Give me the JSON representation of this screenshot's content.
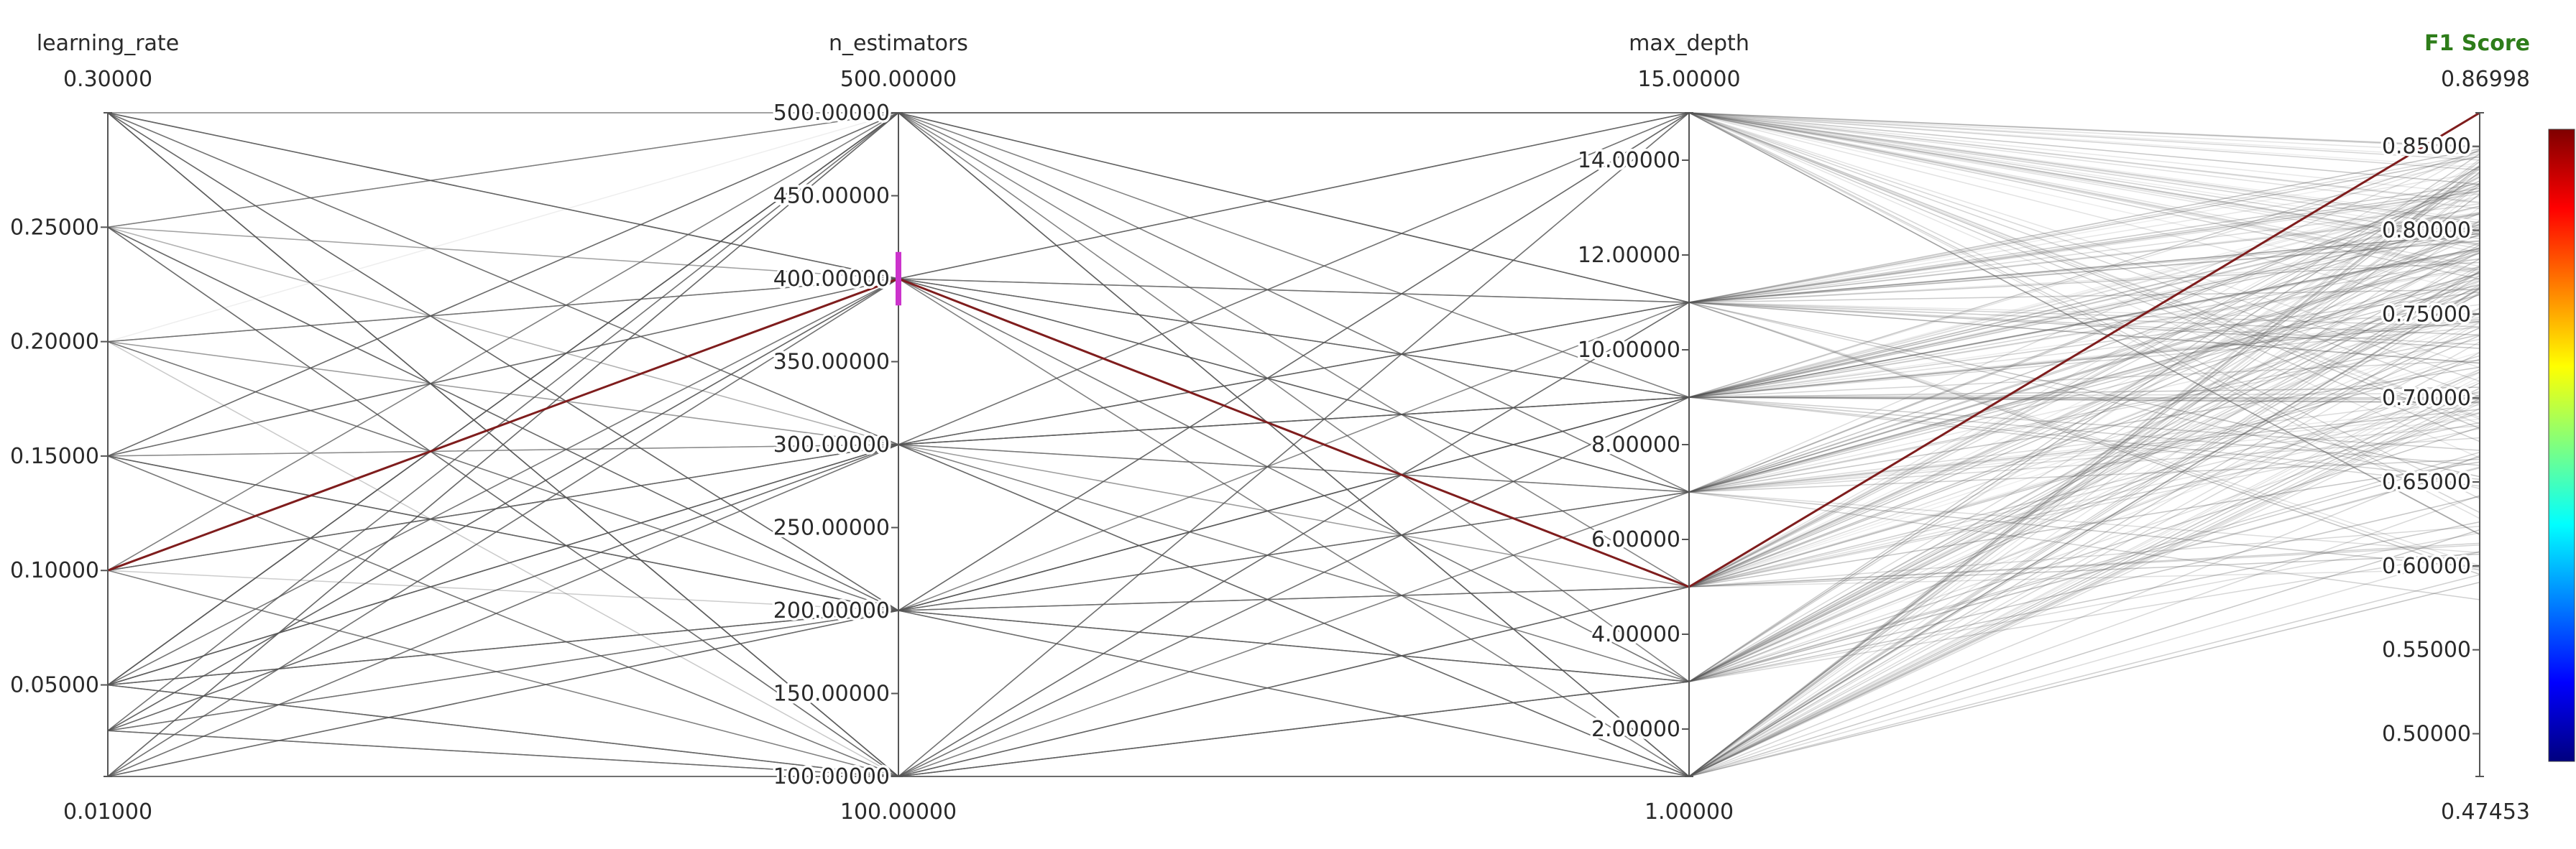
{
  "chart_data": {
    "type": "parallel_coordinates",
    "axes": [
      {
        "name": "learning_rate",
        "title": "learning_rate",
        "range": [
          0.01,
          0.3
        ],
        "range_labels": {
          "top": "0.30000",
          "bottom": "0.01000"
        },
        "ticks": [
          {
            "value": 0.25,
            "label": "0.25000"
          },
          {
            "value": 0.2,
            "label": "0.20000"
          },
          {
            "value": 0.15,
            "label": "0.15000"
          },
          {
            "value": 0.1,
            "label": "0.10000"
          },
          {
            "value": 0.05,
            "label": "0.05000"
          }
        ]
      },
      {
        "name": "n_estimators",
        "title": "n_estimators",
        "range": [
          100,
          500
        ],
        "range_labels": {
          "top": "500.00000",
          "bottom": "100.00000"
        },
        "ticks": [
          {
            "value": 500,
            "label": "500.00000"
          },
          {
            "value": 450,
            "label": "450.00000"
          },
          {
            "value": 400,
            "label": "400.00000"
          },
          {
            "value": 350,
            "label": "350.00000"
          },
          {
            "value": 300,
            "label": "300.00000"
          },
          {
            "value": 250,
            "label": "250.00000"
          },
          {
            "value": 200,
            "label": "200.00000"
          },
          {
            "value": 150,
            "label": "150.00000"
          },
          {
            "value": 100,
            "label": "100.00000"
          }
        ],
        "constraint": [
          396,
          404
        ]
      },
      {
        "name": "max_depth",
        "title": "max_depth",
        "range": [
          1,
          15
        ],
        "range_labels": {
          "top": "15.00000",
          "bottom": "1.00000"
        },
        "ticks": [
          {
            "value": 14,
            "label": "14.00000"
          },
          {
            "value": 12,
            "label": "12.00000"
          },
          {
            "value": 10,
            "label": "10.00000"
          },
          {
            "value": 8,
            "label": "8.00000"
          },
          {
            "value": 6,
            "label": "6.00000"
          },
          {
            "value": 4,
            "label": "4.00000"
          },
          {
            "value": 2,
            "label": "2.00000"
          }
        ]
      },
      {
        "name": "f1_score",
        "title": "F1 Score",
        "is_metric": true,
        "range": [
          0.47453,
          0.86998
        ],
        "range_labels": {
          "top": "0.86998",
          "bottom": "0.47453"
        },
        "ticks": [
          {
            "value": 0.85,
            "label": "0.85000"
          },
          {
            "value": 0.8,
            "label": "0.80000"
          },
          {
            "value": 0.75,
            "label": "0.75000"
          },
          {
            "value": 0.7,
            "label": "0.70000"
          },
          {
            "value": 0.65,
            "label": "0.65000"
          },
          {
            "value": 0.6,
            "label": "0.60000"
          },
          {
            "value": 0.55,
            "label": "0.55000"
          },
          {
            "value": 0.5,
            "label": "0.50000"
          }
        ]
      }
    ],
    "categorical_values": {
      "learning_rate": [
        0.3,
        0.25,
        0.2,
        0.15,
        0.1,
        0.05,
        0.03,
        0.01
      ],
      "n_estimators": [
        100,
        200,
        300,
        400,
        500
      ],
      "max_depth": [
        1,
        3,
        5,
        7,
        9,
        11,
        15
      ]
    },
    "highlighted": {
      "learning_rate": 0.1,
      "n_estimators": 400,
      "max_depth": 5,
      "f1_score": 0.86998
    },
    "colorscale": [
      "#00007f",
      "#0000ff",
      "#007fff",
      "#00ffff",
      "#7fff7f",
      "#ffff00",
      "#ff7f00",
      "#ff0000",
      "#7f0000"
    ],
    "colors": {
      "line": "#555555",
      "highlight": "#7f1d1d",
      "constraint": "#cc33cc",
      "metric_title": "#2e7d1a"
    }
  }
}
